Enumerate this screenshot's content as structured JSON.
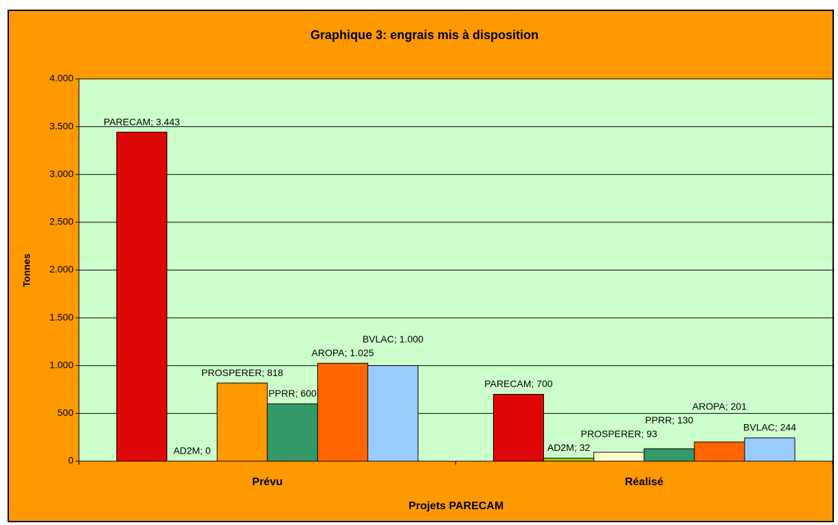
{
  "chart_data": {
    "type": "bar",
    "title": "Graphique 3: engrais mis à disposition",
    "x_label": "Projets PARECAM",
    "y_label": "Tonnes",
    "categories": [
      "Prévu",
      "Réalisé"
    ],
    "series": [
      {
        "name": "PARECAM",
        "colors": [
          "#dd0806",
          "#dd0806"
        ],
        "values": [
          3443,
          700
        ],
        "value_labels": [
          "PARECAM; 3.443",
          "PARECAM; 700"
        ]
      },
      {
        "name": "AD2M",
        "colors": [
          "#99cc00",
          "#99cc00"
        ],
        "values": [
          0,
          32
        ],
        "value_labels": [
          "AD2M; 0",
          "AD2M; 32"
        ]
      },
      {
        "name": "PROSPERER",
        "colors": [
          "#ff9900",
          "#ffffcc"
        ],
        "values": [
          818,
          93
        ],
        "value_labels": [
          "PROSPERER; 818",
          "PROSPERER; 93"
        ]
      },
      {
        "name": "PPRR",
        "colors": [
          "#339966",
          "#339966"
        ],
        "values": [
          600,
          130
        ],
        "value_labels": [
          "PPRR; 600",
          "PPRR; 130"
        ]
      },
      {
        "name": "AROPA",
        "colors": [
          "#ff6600",
          "#ff6600"
        ],
        "values": [
          1025,
          201
        ],
        "value_labels": [
          "AROPA; 1.025",
          "AROPA; 201"
        ]
      },
      {
        "name": "BVLAC",
        "colors": [
          "#99ccff",
          "#99ccff"
        ],
        "values": [
          1000,
          244
        ],
        "value_labels": [
          "BVLAC; 1.000",
          "BVLAC; 244"
        ]
      }
    ],
    "ylim": [
      0,
      4000
    ],
    "yticks": [
      0,
      500,
      {
        "value": 1000,
        "label": "1.000"
      },
      {
        "value": 1500,
        "label": "1.500"
      },
      {
        "value": 2000,
        "label": "2.000"
      },
      {
        "value": 2500,
        "label": "2.500"
      },
      {
        "value": 3000,
        "label": "3.000"
      },
      {
        "value": 3500,
        "label": "3.500"
      },
      {
        "value": 4000,
        "label": "4.000"
      }
    ],
    "grid": true,
    "plot_background": "#ccffcc",
    "background": "#ff9900"
  }
}
